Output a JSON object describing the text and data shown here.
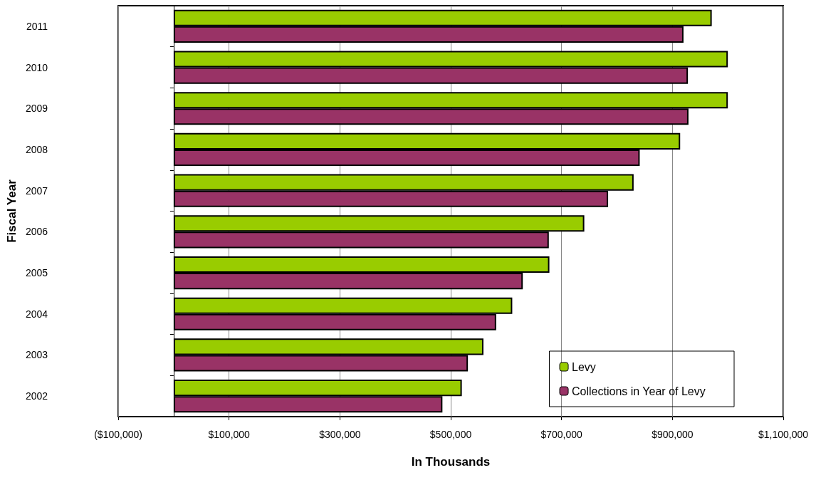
{
  "chart_data": {
    "type": "bar",
    "orientation": "horizontal",
    "xlabel": "In Thousands",
    "ylabel": "Fiscal Year",
    "categories": [
      "2011",
      "2010",
      "2009",
      "2008",
      "2007",
      "2006",
      "2005",
      "2004",
      "2003",
      "2002"
    ],
    "series": [
      {
        "name": "Levy",
        "color": "#99cc00",
        "values": [
          971000,
          1000000,
          1000000,
          914000,
          830000,
          741000,
          678000,
          611000,
          559000,
          520000
        ]
      },
      {
        "name": "Collections in Year of Levy",
        "color": "#993366",
        "values": [
          920000,
          928000,
          929000,
          841000,
          784000,
          677000,
          630000,
          582000,
          531000,
          485000
        ]
      }
    ],
    "xlim": [
      -100000,
      1100000
    ],
    "xticks": [
      {
        "value": -100000,
        "label": "($100,000)"
      },
      {
        "value": 100000,
        "label": "$100,000"
      },
      {
        "value": 300000,
        "label": "$300,000"
      },
      {
        "value": 500000,
        "label": "$500,000"
      },
      {
        "value": 700000,
        "label": "$700,000"
      },
      {
        "value": 900000,
        "label": "$900,000"
      },
      {
        "value": 1100000,
        "label": "$1,100,000"
      }
    ],
    "grid": "x",
    "legend": "bottom right"
  }
}
